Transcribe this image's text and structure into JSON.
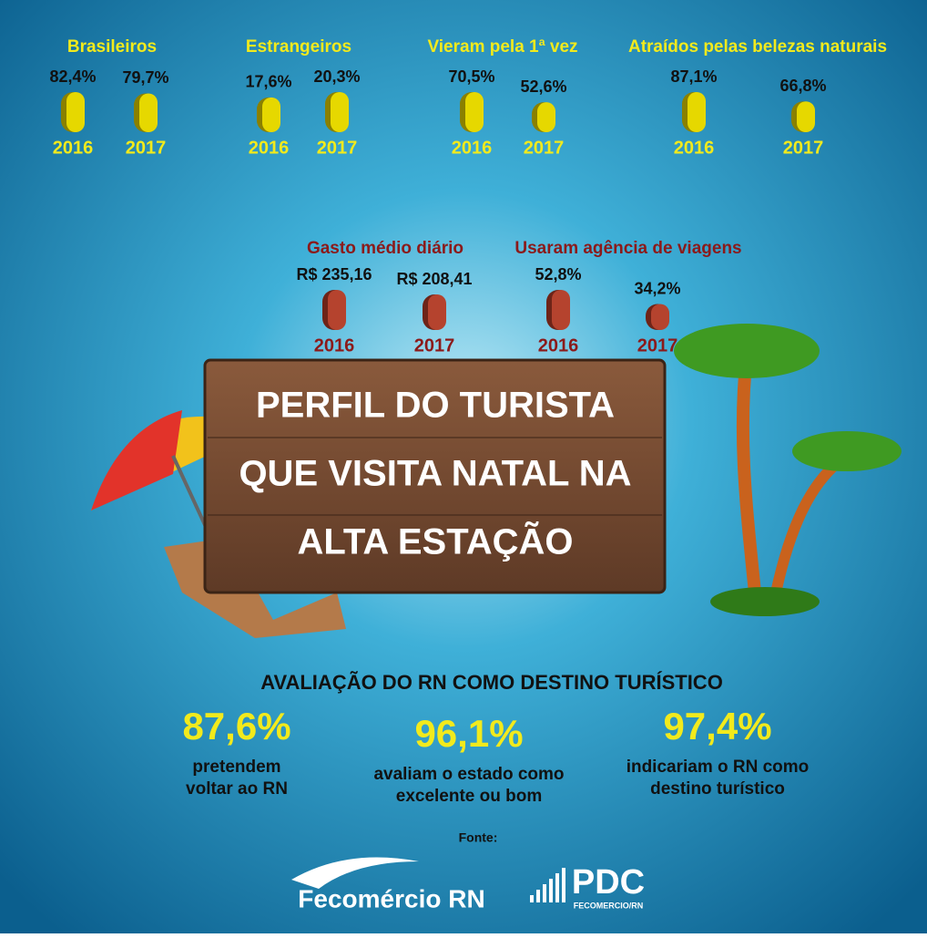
{
  "groups": [
    {
      "title": "Brasileiros",
      "items": [
        {
          "year": "2016",
          "value": 82.4,
          "label": "82,4%"
        },
        {
          "year": "2017",
          "value": 79.7,
          "label": "79,7%"
        }
      ]
    },
    {
      "title": "Estrangeiros",
      "items": [
        {
          "year": "2016",
          "value": 17.6,
          "label": "17,6%"
        },
        {
          "year": "2017",
          "value": 20.3,
          "label": "20,3%"
        }
      ]
    },
    {
      "title": "Vieram pela 1ª vez",
      "items": [
        {
          "year": "2016",
          "value": 70.5,
          "label": "70,5%"
        },
        {
          "year": "2017",
          "value": 52.6,
          "label": "52,6%"
        }
      ]
    },
    {
      "title": "Atraídos pelas belezas naturais",
      "items": [
        {
          "year": "2016",
          "value": 87.1,
          "label": "87,1%"
        },
        {
          "year": "2017",
          "value": 66.8,
          "label": "66,8%"
        }
      ]
    },
    {
      "title": "Gasto médio diário",
      "items": [
        {
          "year": "2016",
          "value": 235.16,
          "label": "R$ 235,16"
        },
        {
          "year": "2017",
          "value": 208.41,
          "label": "R$ 208,41"
        }
      ]
    },
    {
      "title": "Usaram agência de viagens",
      "items": [
        {
          "year": "2016",
          "value": 52.8,
          "label": "52,8%"
        },
        {
          "year": "2017",
          "value": 34.2,
          "label": "34,2%"
        }
      ]
    }
  ],
  "sign": {
    "lines": [
      "PERFIL DO TURISTA",
      "QUE VISITA NATAL NA",
      "ALTA ESTAÇÃO"
    ]
  },
  "evaluation": {
    "title": "AVALIAÇÃO DO RN COMO DESTINO TURÍSTICO",
    "stats": [
      {
        "value": "87,6%",
        "lines": [
          "pretendem",
          "voltar ao RN"
        ]
      },
      {
        "value": "96,1%",
        "lines": [
          "avaliam o estado como",
          "excelente ou bom"
        ]
      },
      {
        "value": "97,4%",
        "lines": [
          "indicariam o RN como",
          "destino turístico"
        ]
      }
    ]
  },
  "footer": {
    "source_label": "Fonte:",
    "logos": [
      "Fecomércio RN",
      "PDC",
      "FECOMERCIO/RN"
    ]
  }
}
